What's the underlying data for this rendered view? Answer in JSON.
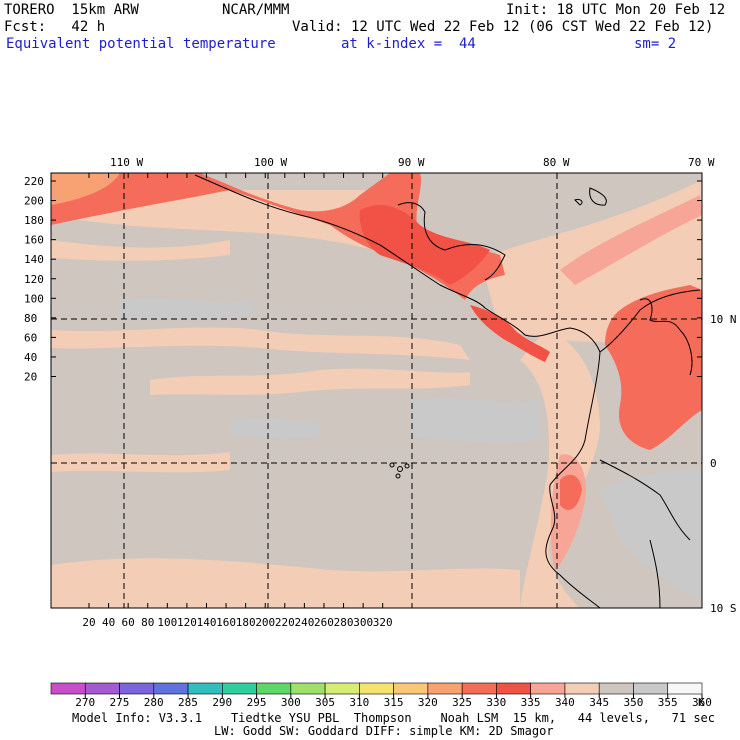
{
  "header": {
    "model": "TORERO  15km ARW",
    "center": "NCAR/MMM",
    "init": "Init: 18 UTC Mon 20 Feb 12",
    "fcst": "Fcst:   42 h",
    "valid": "Valid: 12 UTC Wed 22 Feb 12 (06 CST Wed 22 Feb 12)",
    "field": "Equivalent potential temperature",
    "level": "at k-index =  44",
    "smooth": "sm= 2"
  },
  "map": {
    "lon_labels": [
      "110 W",
      "100 W",
      "90 W",
      "80 W",
      "70 W"
    ],
    "lat_labels": [
      "10 N",
      "0",
      "10 S"
    ],
    "y_ticks": [
      "220",
      "200",
      "180",
      "160",
      "140",
      "120",
      "100",
      "80",
      "60",
      "40",
      "20"
    ],
    "x_ticks": [
      "20",
      "40",
      "60",
      "80",
      "100",
      "120",
      "140",
      "160",
      "180",
      "200",
      "220",
      "240",
      "260",
      "280",
      "300",
      "320"
    ]
  },
  "colorbar": {
    "labels": [
      "270",
      "275",
      "280",
      "285",
      "290",
      "295",
      "300",
      "305",
      "310",
      "315",
      "320",
      "325",
      "330",
      "335",
      "340",
      "345",
      "350",
      "355",
      "360"
    ],
    "colors": [
      "#c74fc7",
      "#a45ad0",
      "#7b64dc",
      "#5f72de",
      "#2fbfbf",
      "#2dcf9e",
      "#5fd66a",
      "#9fe06a",
      "#d7ec73",
      "#f4e36e",
      "#f8c878",
      "#f8a172",
      "#f56c5a",
      "#f25145",
      "#f7a597",
      "#f3cdb6",
      "#cfc6c0",
      "#c9c9c9",
      "#f7f7f7"
    ],
    "unit": "K"
  },
  "footer": {
    "line1": "Model Info: V3.3.1    Tiedtke YSU PBL  Thompson    Noah LSM  15 km,   44 levels,   71 sec",
    "line2": "LW: Godd SW: Goddard DIFF: simple KM: 2D Smagor"
  }
}
